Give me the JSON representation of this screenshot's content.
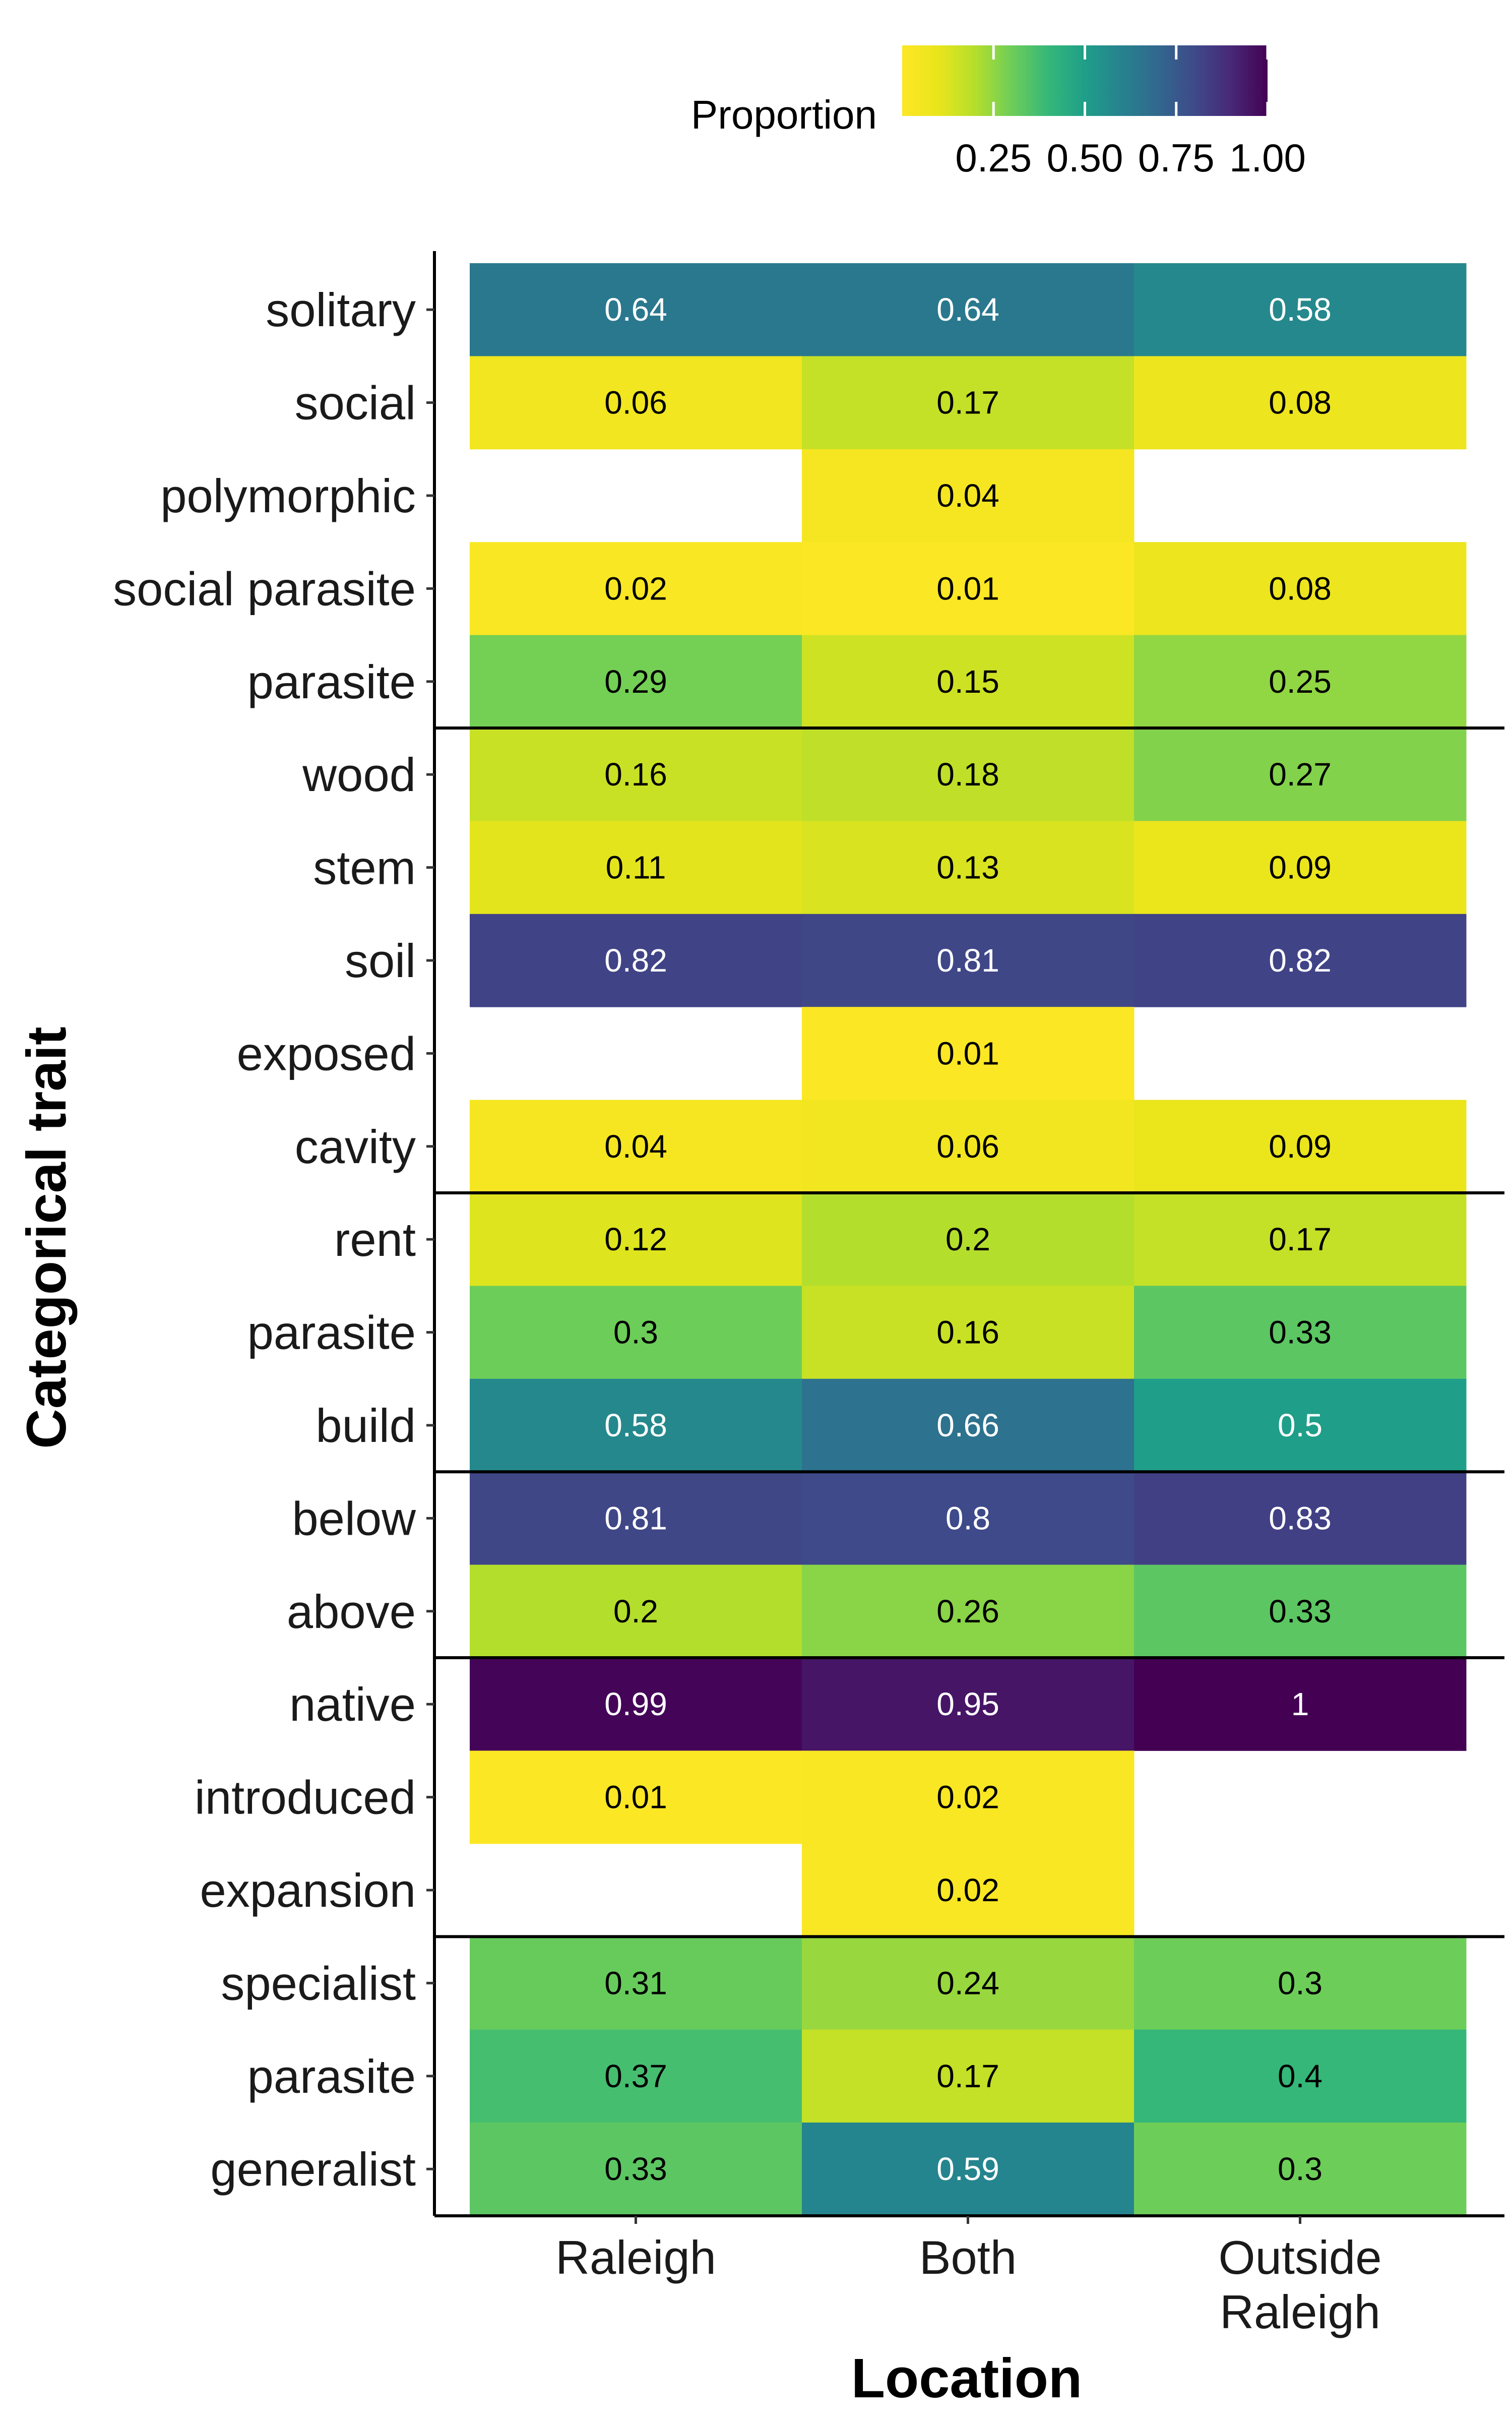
{
  "chart_data": {
    "type": "heatmap",
    "xlabel": "Location",
    "ylabel": "Categorical trait",
    "x": [
      "Raleigh",
      "Both",
      "Outside\nRaleigh"
    ],
    "y": [
      "solitary",
      "social",
      "polymorphic",
      "social parasite",
      "parasite",
      "wood",
      "stem",
      "soil",
      "exposed",
      "cavity",
      "rent",
      "parasite",
      "build",
      "below",
      "above",
      "native",
      "introduced",
      "expansion",
      "specialist",
      "parasite",
      "generalist"
    ],
    "values": [
      [
        0.64,
        0.64,
        0.58
      ],
      [
        0.06,
        0.17,
        0.08
      ],
      [
        null,
        0.04,
        null
      ],
      [
        0.02,
        0.01,
        0.08
      ],
      [
        0.29,
        0.15,
        0.25
      ],
      [
        0.16,
        0.18,
        0.27
      ],
      [
        0.11,
        0.13,
        0.09
      ],
      [
        0.82,
        0.81,
        0.82
      ],
      [
        null,
        0.01,
        null
      ],
      [
        0.04,
        0.06,
        0.09
      ],
      [
        0.12,
        0.2,
        0.17
      ],
      [
        0.3,
        0.16,
        0.33
      ],
      [
        0.58,
        0.66,
        0.5
      ],
      [
        0.81,
        0.8,
        0.83
      ],
      [
        0.2,
        0.26,
        0.33
      ],
      [
        0.99,
        0.95,
        1
      ],
      [
        0.01,
        0.02,
        null
      ],
      [
        null,
        0.02,
        null
      ],
      [
        0.31,
        0.24,
        0.3
      ],
      [
        0.37,
        0.17,
        0.4
      ],
      [
        0.33,
        0.59,
        0.3
      ]
    ],
    "group_separators_after_row": [
      4,
      9,
      12,
      14,
      17
    ],
    "legend": {
      "title": "Proportion",
      "position": "top",
      "ticks": [
        0.25,
        0.5,
        0.75,
        1.0
      ],
      "tick_labels": [
        "0.25",
        "0.50",
        "0.75",
        "1.00"
      ],
      "colormap": "viridis-reversed"
    },
    "colors": [
      "#fde725",
      "#5ec962",
      "#21918c",
      "#3b528b",
      "#440154"
    ],
    "grid": false
  }
}
